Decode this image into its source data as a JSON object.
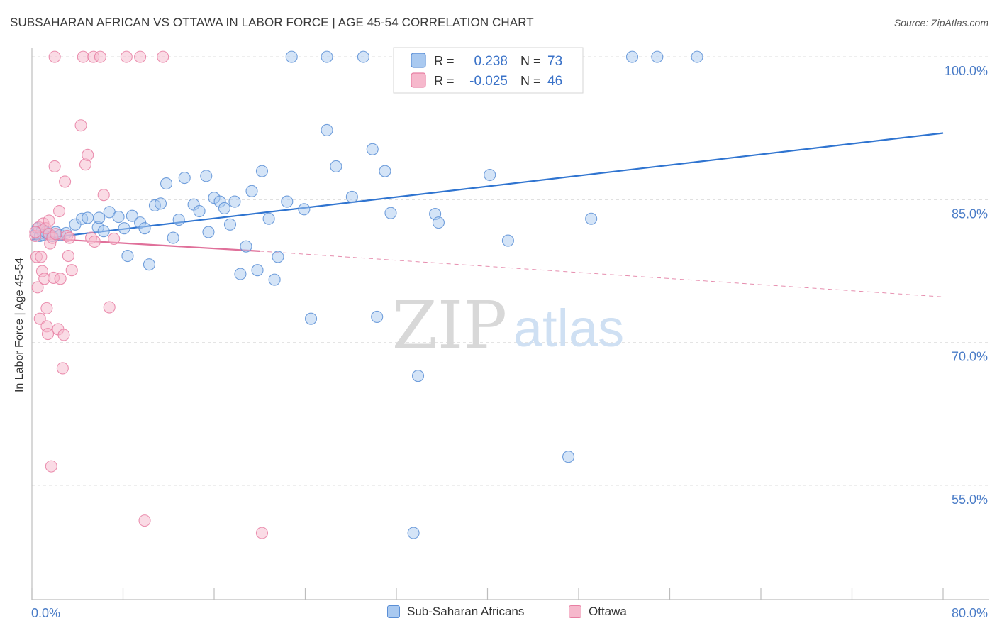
{
  "title": "SUBSAHARAN AFRICAN VS OTTAWA IN LABOR FORCE | AGE 45-54 CORRELATION CHART",
  "source": "Source: ZipAtlas.com",
  "watermark": {
    "zip": "ZIP",
    "atlas": "atlas"
  },
  "colors": {
    "blue_fill": "#a9c9f0",
    "blue_stroke": "#5b8fd6",
    "blue_line": "#2f74d0",
    "pink_fill": "#f6b8cc",
    "pink_stroke": "#e87fa3",
    "pink_line": "#e0709a",
    "axis_label": "#4a7cc7",
    "grid": "#dcdcdc"
  },
  "legend_stats": {
    "r_label": "R =",
    "n_label": "N =",
    "series": [
      {
        "r": "0.238",
        "n": "73"
      },
      {
        "r": "-0.025",
        "n": "46"
      }
    ]
  },
  "chart_data": {
    "type": "scatter",
    "title": "SUBSAHARAN AFRICAN VS OTTAWA IN LABOR FORCE | AGE 45-54 CORRELATION CHART",
    "xlabel": "",
    "ylabel": "In Labor Force | Age 45-54",
    "xlim": [
      0,
      80
    ],
    "ylim": [
      43,
      101.5
    ],
    "x_tick_labels": [
      "0.0%",
      "80.0%"
    ],
    "y_ticks": [
      55,
      70,
      85,
      100
    ],
    "y_tick_labels": [
      "55.0%",
      "70.0%",
      "85.0%",
      "100.0%"
    ],
    "grid": true,
    "legend_position": "bottom",
    "series": [
      {
        "name": "Sub-Saharan Africans",
        "r": 0.238,
        "n": 73,
        "trend": {
          "x": [
            0,
            80
          ],
          "y": [
            80.8,
            92.0
          ]
        },
        "points": [
          [
            0.4,
            81.5
          ],
          [
            0.5,
            82.0
          ],
          [
            0.7,
            81.2
          ],
          [
            0.9,
            81.8
          ],
          [
            1.0,
            81.3
          ],
          [
            1.2,
            81.6
          ],
          [
            1.5,
            81.4
          ],
          [
            1.8,
            81.2
          ],
          [
            2.1,
            81.6
          ],
          [
            2.5,
            81.3
          ],
          [
            3.0,
            81.5
          ],
          [
            3.8,
            82.4
          ],
          [
            4.4,
            83.0
          ],
          [
            4.9,
            83.1
          ],
          [
            5.8,
            82.1
          ],
          [
            5.9,
            83.1
          ],
          [
            6.3,
            81.7
          ],
          [
            6.8,
            83.7
          ],
          [
            7.6,
            83.2
          ],
          [
            8.1,
            82.0
          ],
          [
            8.4,
            79.1
          ],
          [
            8.8,
            83.3
          ],
          [
            9.5,
            82.6
          ],
          [
            9.9,
            82.0
          ],
          [
            10.3,
            78.2
          ],
          [
            10.8,
            84.4
          ],
          [
            11.3,
            84.6
          ],
          [
            11.8,
            86.7
          ],
          [
            12.4,
            81.0
          ],
          [
            12.9,
            82.9
          ],
          [
            13.4,
            87.3
          ],
          [
            14.2,
            84.5
          ],
          [
            14.7,
            83.8
          ],
          [
            15.3,
            87.5
          ],
          [
            15.5,
            81.6
          ],
          [
            16.0,
            85.2
          ],
          [
            16.5,
            84.8
          ],
          [
            16.9,
            84.1
          ],
          [
            17.4,
            82.4
          ],
          [
            17.8,
            84.8
          ],
          [
            18.3,
            77.2
          ],
          [
            18.8,
            80.1
          ],
          [
            19.3,
            85.9
          ],
          [
            19.8,
            77.6
          ],
          [
            20.2,
            88.0
          ],
          [
            20.8,
            83.0
          ],
          [
            21.3,
            76.6
          ],
          [
            21.6,
            79.0
          ],
          [
            22.4,
            84.8
          ],
          [
            22.8,
            100.0
          ],
          [
            23.9,
            84.0
          ],
          [
            24.5,
            72.5
          ],
          [
            25.9,
            100.0
          ],
          [
            25.9,
            92.3
          ],
          [
            26.7,
            88.5
          ],
          [
            28.1,
            85.3
          ],
          [
            29.1,
            100.0
          ],
          [
            29.9,
            90.3
          ],
          [
            30.3,
            72.7
          ],
          [
            31.0,
            88.0
          ],
          [
            31.5,
            83.6
          ],
          [
            33.5,
            50.0
          ],
          [
            33.9,
            66.5
          ],
          [
            34.0,
            100.0
          ],
          [
            35.4,
            83.5
          ],
          [
            35.7,
            82.6
          ],
          [
            40.2,
            87.6
          ],
          [
            41.8,
            80.7
          ],
          [
            47.1,
            58.0
          ],
          [
            49.1,
            83.0
          ],
          [
            52.7,
            100.0
          ],
          [
            54.9,
            100.0
          ],
          [
            58.4,
            100.0
          ]
        ]
      },
      {
        "name": "Ottawa",
        "r": -0.025,
        "n": 46,
        "trend": {
          "x": [
            0,
            20
          ],
          "y": [
            81.0,
            79.6
          ]
        },
        "trend_extension": {
          "x": [
            20,
            80
          ],
          "y": [
            79.6,
            74.8
          ]
        },
        "points": [
          [
            0.3,
            81.2
          ],
          [
            0.4,
            79.0
          ],
          [
            0.5,
            75.8
          ],
          [
            0.6,
            82.1
          ],
          [
            0.7,
            72.5
          ],
          [
            0.8,
            79.0
          ],
          [
            0.9,
            77.5
          ],
          [
            1.0,
            82.5
          ],
          [
            1.1,
            76.7
          ],
          [
            1.2,
            82.0
          ],
          [
            1.3,
            73.6
          ],
          [
            1.3,
            71.7
          ],
          [
            1.4,
            70.9
          ],
          [
            1.5,
            81.4
          ],
          [
            1.5,
            82.8
          ],
          [
            1.6,
            80.4
          ],
          [
            1.7,
            57.0
          ],
          [
            1.8,
            81.0
          ],
          [
            1.9,
            76.8
          ],
          [
            2.0,
            88.5
          ],
          [
            2.0,
            100.0
          ],
          [
            2.1,
            81.4
          ],
          [
            2.3,
            71.4
          ],
          [
            2.4,
            83.8
          ],
          [
            2.5,
            76.7
          ],
          [
            2.7,
            67.3
          ],
          [
            2.8,
            70.8
          ],
          [
            2.9,
            86.9
          ],
          [
            3.1,
            81.2
          ],
          [
            3.2,
            79.1
          ],
          [
            3.3,
            81.0
          ],
          [
            3.5,
            77.6
          ],
          [
            4.3,
            92.8
          ],
          [
            4.5,
            100.0
          ],
          [
            4.7,
            88.7
          ],
          [
            4.9,
            89.7
          ],
          [
            5.2,
            81.0
          ],
          [
            5.4,
            100.0
          ],
          [
            5.5,
            80.6
          ],
          [
            6.0,
            100.0
          ],
          [
            6.3,
            85.5
          ],
          [
            6.8,
            73.7
          ],
          [
            7.2,
            80.9
          ],
          [
            8.3,
            100.0
          ],
          [
            9.9,
            51.3
          ],
          [
            20.2,
            50.0
          ]
        ]
      }
    ],
    "overlay_points": [
      {
        "series": "Ottawa",
        "x": 0.3,
        "y": 81.6
      },
      {
        "series": "Ottawa",
        "x": 9.5,
        "y": 100.0
      },
      {
        "series": "Ottawa",
        "x": 11.5,
        "y": 100.0
      }
    ]
  }
}
